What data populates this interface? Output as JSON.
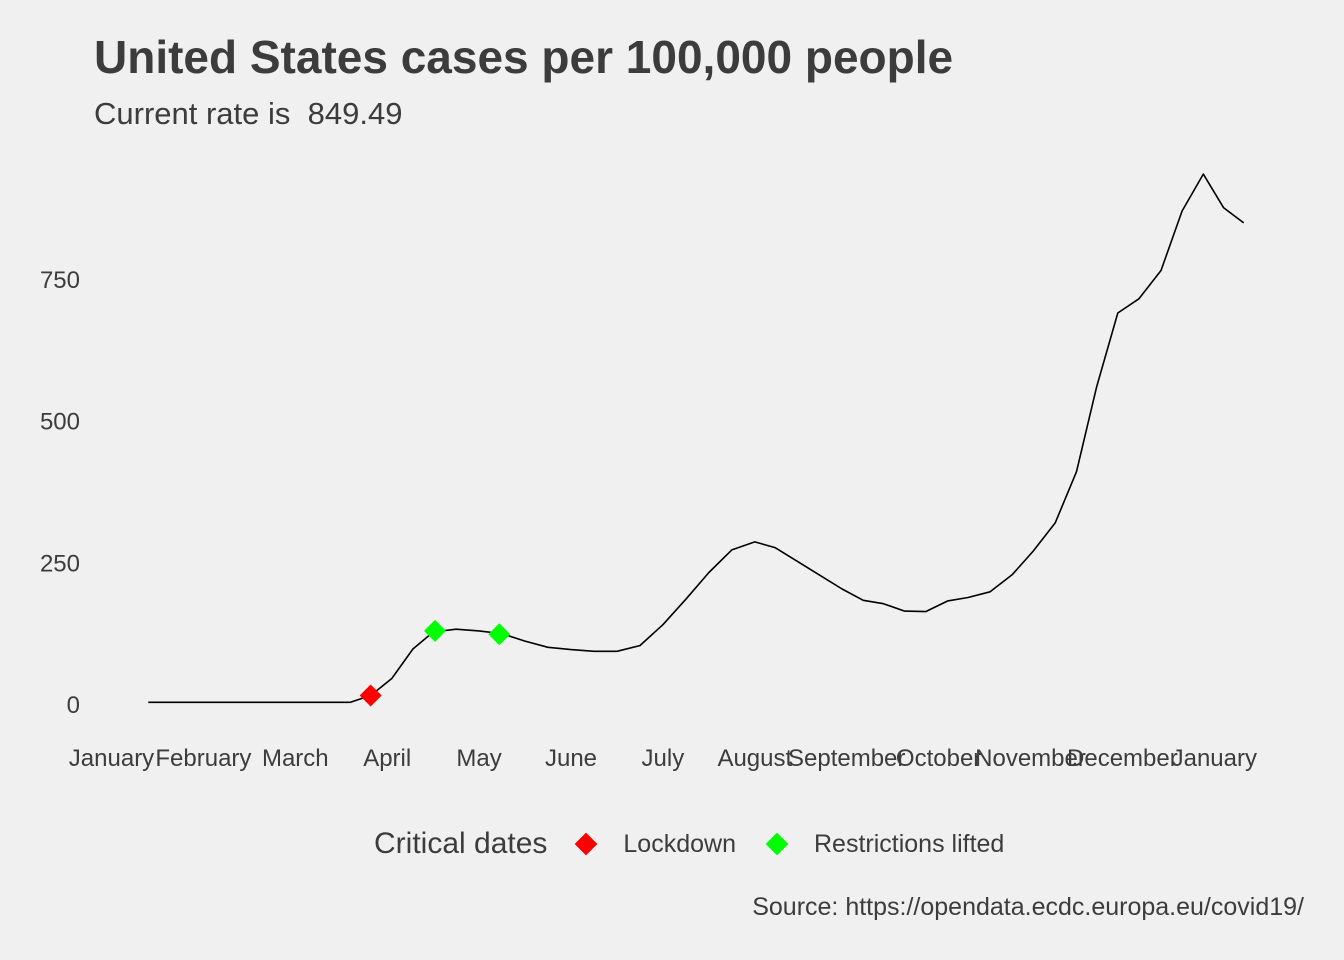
{
  "header": {
    "title": "United States cases per 100,000 people",
    "subtitle": "Current rate is  849.49"
  },
  "caption": "Source: https://opendata.ecdc.europa.eu/covid19/",
  "legend": {
    "title": "Critical dates",
    "items": [
      {
        "label": "Lockdown",
        "color": "#ff0000"
      },
      {
        "label": "Restrictions lifted",
        "color": "#00ff00"
      }
    ]
  },
  "chart_data": {
    "type": "line",
    "title": "United States cases per 100,000 people",
    "subtitle": "Current rate is  849.49",
    "xlabel": "",
    "ylabel": "",
    "x_unit": "month (fractional, 0 = January 1 2020)",
    "xlim": [
      0,
      12.3
    ],
    "ylim": [
      -25,
      950
    ],
    "y_ticks": [
      0,
      250,
      500,
      750
    ],
    "x_tick_labels": [
      {
        "label": "January",
        "x": 0
      },
      {
        "label": "February",
        "x": 1
      },
      {
        "label": "March",
        "x": 2
      },
      {
        "label": "April",
        "x": 3
      },
      {
        "label": "May",
        "x": 4
      },
      {
        "label": "June",
        "x": 5
      },
      {
        "label": "July",
        "x": 6
      },
      {
        "label": "August",
        "x": 7
      },
      {
        "label": "September",
        "x": 8
      },
      {
        "label": "October",
        "x": 9
      },
      {
        "label": "November",
        "x": 10
      },
      {
        "label": "December",
        "x": 11
      },
      {
        "label": "January",
        "x": 12
      }
    ],
    "series": [
      {
        "line_color": "#000000",
        "points": [
          [
            0.4,
            3
          ],
          [
            1.0,
            3
          ],
          [
            1.5,
            3
          ],
          [
            2.0,
            3
          ],
          [
            2.5,
            3
          ],
          [
            2.6,
            3
          ],
          [
            2.82,
            15
          ],
          [
            3.05,
            45
          ],
          [
            3.28,
            97
          ],
          [
            3.5,
            127
          ],
          [
            3.75,
            132
          ],
          [
            4.0,
            129
          ],
          [
            4.25,
            124
          ],
          [
            4.5,
            111
          ],
          [
            4.75,
            100
          ],
          [
            5.0,
            96
          ],
          [
            5.25,
            93
          ],
          [
            5.5,
            93
          ],
          [
            5.75,
            103
          ],
          [
            6.0,
            140
          ],
          [
            6.25,
            185
          ],
          [
            6.5,
            232
          ],
          [
            6.75,
            272
          ],
          [
            7.0,
            286
          ],
          [
            7.22,
            276
          ],
          [
            7.46,
            252
          ],
          [
            7.7,
            228
          ],
          [
            7.95,
            203
          ],
          [
            8.18,
            183
          ],
          [
            8.4,
            177
          ],
          [
            8.63,
            164
          ],
          [
            8.86,
            163
          ],
          [
            9.1,
            182
          ],
          [
            9.32,
            188
          ],
          [
            9.56,
            198
          ],
          [
            9.8,
            228
          ],
          [
            10.03,
            270
          ],
          [
            10.27,
            320
          ],
          [
            10.5,
            410
          ],
          [
            10.72,
            560
          ],
          [
            10.95,
            690
          ],
          [
            11.18,
            715
          ],
          [
            11.42,
            765
          ],
          [
            11.65,
            870
          ],
          [
            11.88,
            935
          ],
          [
            12.1,
            876
          ],
          [
            12.32,
            849
          ]
        ]
      }
    ],
    "markers": [
      {
        "type": "Lockdown",
        "x": 2.82,
        "y": 15,
        "color": "#ff0000"
      },
      {
        "type": "Restrictions lifted",
        "x": 3.52,
        "y": 129,
        "color": "#00ff00"
      },
      {
        "type": "Restrictions lifted",
        "x": 4.22,
        "y": 123,
        "color": "#00ff00"
      }
    ]
  }
}
